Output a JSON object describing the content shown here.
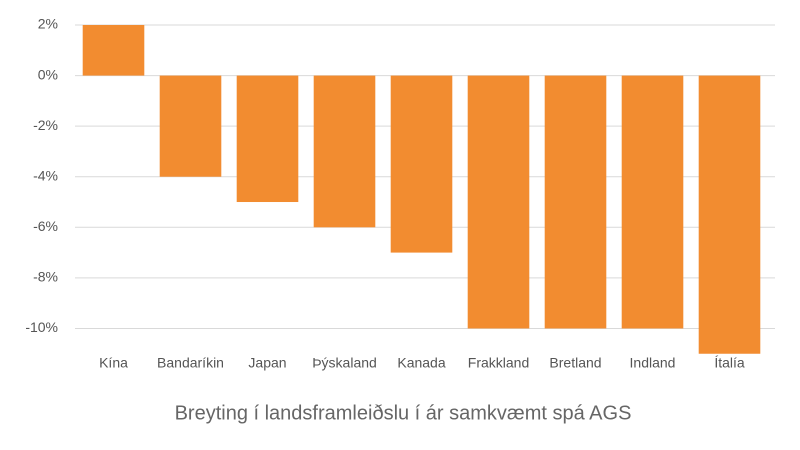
{
  "chart_data": {
    "type": "bar",
    "title": "Breyting í landsframleiðslu í ár samkvæmt spá AGS",
    "categories": [
      "Kína",
      "Bandaríkin",
      "Japan",
      "Þýskaland",
      "Kanada",
      "Frakkland",
      "Bretland",
      "Indland",
      "Ítalía"
    ],
    "values": [
      2,
      -4,
      -5,
      -6,
      -7,
      -10,
      -10,
      -10,
      -11
    ],
    "color": "#f28c30",
    "ylim": [
      -11,
      2
    ],
    "yticks": [
      {
        "value": 2,
        "label": "2%"
      },
      {
        "value": 0,
        "label": "0%"
      },
      {
        "value": -2,
        "label": "-2%"
      },
      {
        "value": -4,
        "label": "-4%"
      },
      {
        "value": -6,
        "label": "-6%"
      },
      {
        "value": -8,
        "label": "-8%"
      },
      {
        "value": -10,
        "label": "-10%"
      }
    ],
    "grid": true
  }
}
